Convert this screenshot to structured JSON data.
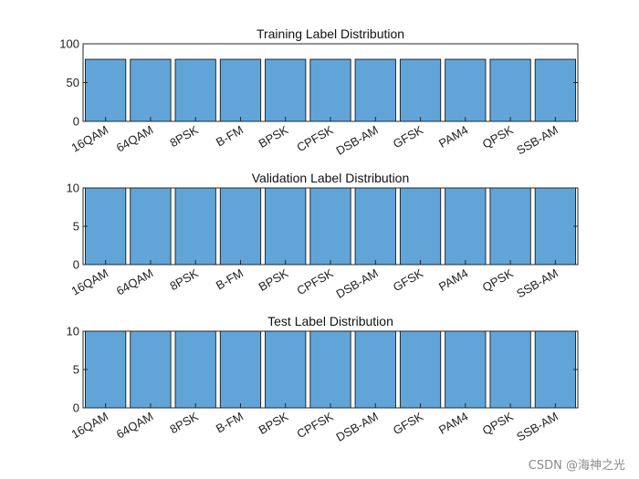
{
  "chart_data": [
    {
      "type": "bar",
      "title": "Training Label Distribution",
      "categories": [
        "16QAM",
        "64QAM",
        "8PSK",
        "B-FM",
        "BPSK",
        "CPFSK",
        "DSB-AM",
        "GFSK",
        "PAM4",
        "QPSK",
        "SSB-AM"
      ],
      "values": [
        80,
        80,
        80,
        80,
        80,
        80,
        80,
        80,
        80,
        80,
        80
      ],
      "ylim": [
        0,
        100
      ],
      "yticks": [
        0,
        50,
        100
      ],
      "grid": false
    },
    {
      "type": "bar",
      "title": "Validation Label Distribution",
      "categories": [
        "16QAM",
        "64QAM",
        "8PSK",
        "B-FM",
        "BPSK",
        "CPFSK",
        "DSB-AM",
        "GFSK",
        "PAM4",
        "QPSK",
        "SSB-AM"
      ],
      "values": [
        10,
        10,
        10,
        10,
        10,
        10,
        10,
        10,
        10,
        10,
        10
      ],
      "ylim": [
        0,
        10
      ],
      "yticks": [
        0,
        5,
        10
      ],
      "grid": false
    },
    {
      "type": "bar",
      "title": "Test Label Distribution",
      "categories": [
        "16QAM",
        "64QAM",
        "8PSK",
        "B-FM",
        "BPSK",
        "CPFSK",
        "DSB-AM",
        "GFSK",
        "PAM4",
        "QPSK",
        "SSB-AM"
      ],
      "values": [
        10,
        10,
        10,
        10,
        10,
        10,
        10,
        10,
        10,
        10,
        10
      ],
      "ylim": [
        0,
        10
      ],
      "yticks": [
        0,
        5,
        10
      ],
      "grid": false
    }
  ],
  "colors": {
    "bar_fill": "#61a5d8",
    "bar_edge": "#1a1a1a",
    "axis": "#262626"
  },
  "watermark": "CSDN @海神之光"
}
